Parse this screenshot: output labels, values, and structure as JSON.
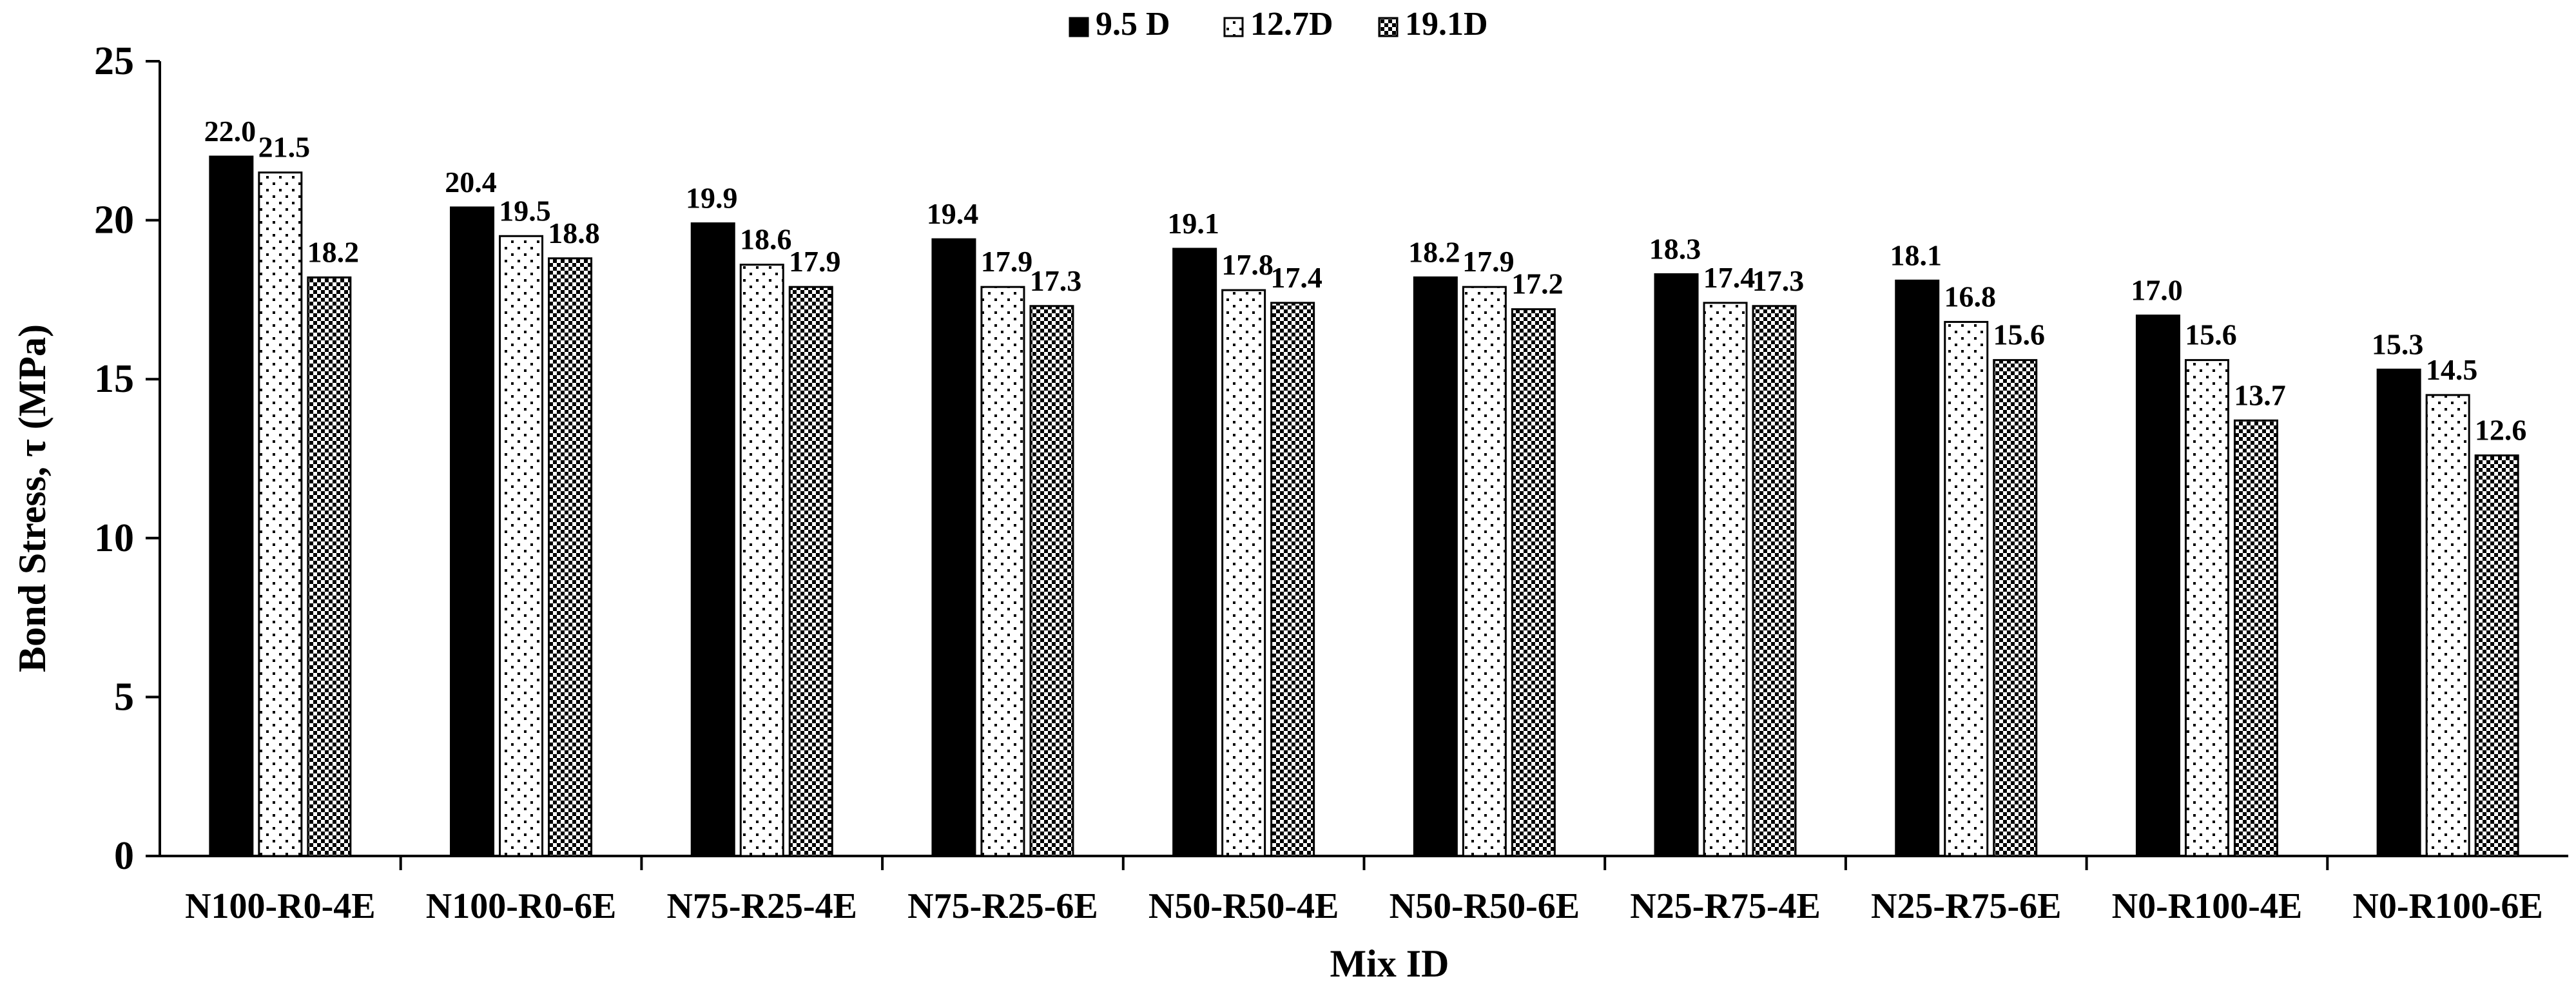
{
  "chart_data": {
    "type": "bar",
    "title": "",
    "xlabel": "Mix ID",
    "ylabel": "Bond Stress, τ (MPa)",
    "ylim": [
      0,
      25
    ],
    "yticks": [
      "0",
      "5",
      "10",
      "15",
      "20",
      "25"
    ],
    "grid": false,
    "legend_position": "top-center",
    "categories": [
      "N100-R0-4E",
      "N100-R0-6E",
      "N75-R25-4E",
      "N75-R25-6E",
      "N50-R50-4E",
      "N50-R50-6E",
      "N25-R75-4E",
      "N25-R75-6E",
      "N0-R100-4E",
      "N0-R100-6E"
    ],
    "series": [
      {
        "name": "9.5 D",
        "pattern": "solid-black",
        "values": [
          22.0,
          20.4,
          19.9,
          19.4,
          19.1,
          18.2,
          18.3,
          18.1,
          17.0,
          15.3
        ],
        "labels": [
          "22.0",
          "20.4",
          "19.9",
          "19.4",
          "19.1",
          "18.2",
          "18.3",
          "18.1",
          "17.0",
          "15.3"
        ]
      },
      {
        "name": "12.7D",
        "pattern": "sparse-dots",
        "values": [
          21.5,
          19.5,
          18.6,
          17.9,
          17.8,
          17.9,
          17.4,
          16.8,
          15.6,
          14.5
        ],
        "labels": [
          "21.5",
          "19.5",
          "18.6",
          "17.9",
          "17.8",
          "17.9",
          "17.4",
          "16.8",
          "15.6",
          "14.5"
        ]
      },
      {
        "name": "19.1D",
        "pattern": "dense-checker",
        "values": [
          18.2,
          18.8,
          17.9,
          17.3,
          17.4,
          17.2,
          17.3,
          15.6,
          13.7,
          12.6
        ],
        "labels": [
          "18.2",
          "18.8",
          "17.9",
          "17.3",
          "17.4",
          "17.2",
          "17.3",
          "15.6",
          "13.7",
          "12.6"
        ]
      }
    ],
    "colors": {
      "bar_outline": "#000000",
      "axis": "#000000",
      "background": "#ffffff"
    }
  }
}
